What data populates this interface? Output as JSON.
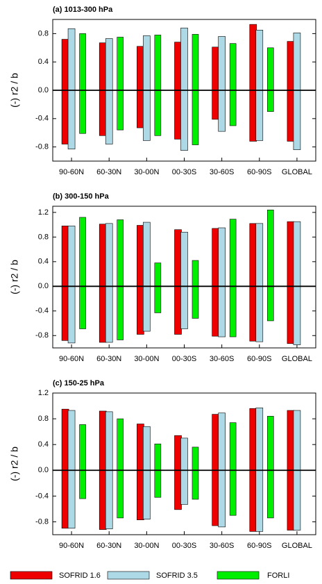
{
  "chart_data": [
    {
      "type": "bar",
      "title": "(a) 1013-300 hPa",
      "ylabel": "(-) r2 / b",
      "categories": [
        "90-60N",
        "60-30N",
        "30-00N",
        "00-30S",
        "30-60S",
        "60-90S",
        "GLOBAL"
      ],
      "ylim": [
        -1.0,
        1.0
      ],
      "yticks": [
        -0.8,
        -0.4,
        {
          "value": 0,
          "label": "0.0"
        },
        0.4,
        0.8
      ],
      "series": [
        {
          "name": "SOFRID 1.6",
          "color": "#ee0000",
          "upper": [
            0.72,
            0.67,
            0.62,
            0.68,
            0.61,
            0.93,
            0.69
          ],
          "lower": [
            -0.76,
            -0.64,
            -0.53,
            -0.69,
            -0.41,
            -0.72,
            -0.72
          ]
        },
        {
          "name": "SOFRID 3.5",
          "color": "#add8e6",
          "upper": [
            0.87,
            0.73,
            0.77,
            0.88,
            0.76,
            0.85,
            0.81
          ],
          "lower": [
            -0.83,
            -0.76,
            -0.71,
            -0.85,
            -0.58,
            -0.71,
            -0.84
          ]
        },
        {
          "name": "FORLI",
          "color": "#00ee00",
          "upper": [
            0.8,
            0.75,
            0.78,
            0.79,
            0.66,
            0.6,
            null
          ],
          "lower": [
            -0.61,
            -0.56,
            -0.64,
            -0.77,
            -0.5,
            -0.3,
            null
          ]
        }
      ]
    },
    {
      "type": "bar",
      "title": "(b) 300-150 hPa",
      "ylabel": "(-) r2 / b",
      "categories": [
        "90-60N",
        "60-30N",
        "30-00N",
        "00-30S",
        "30-60S",
        "60-90S",
        "GLOBAL"
      ],
      "ylim": [
        -1.0,
        1.3
      ],
      "yticks": [
        -0.8,
        -0.4,
        {
          "value": 0,
          "label": "0.0"
        },
        0.4,
        0.8,
        1.2
      ],
      "series": [
        {
          "upper": [
            0.98,
            1.01,
            0.99,
            0.92,
            0.94,
            1.02,
            1.05
          ],
          "lower": [
            -0.88,
            -0.91,
            -0.78,
            -0.78,
            -0.81,
            -0.89,
            -0.93
          ]
        },
        {
          "upper": [
            0.98,
            1.02,
            1.04,
            0.88,
            0.95,
            1.02,
            1.05
          ],
          "lower": [
            -0.92,
            -0.91,
            -0.73,
            -0.69,
            -0.82,
            -0.9,
            -0.95
          ]
        },
        {
          "upper": [
            1.12,
            1.08,
            0.38,
            0.42,
            1.09,
            1.24,
            null
          ],
          "lower": [
            -0.69,
            -0.87,
            -0.43,
            -0.52,
            -0.82,
            -0.56,
            null
          ]
        }
      ]
    },
    {
      "type": "bar",
      "title": "(c) 150-25 hPa",
      "ylabel": "(-) r2 / b",
      "categories": [
        "90-60N",
        "60-30N",
        "30-00N",
        "00-30S",
        "30-60S",
        "60-90S",
        "GLOBAL"
      ],
      "ylim": [
        -1.0,
        1.2
      ],
      "yticks": [
        -0.8,
        -0.4,
        {
          "value": 0,
          "label": "0.0"
        },
        0.4,
        0.8,
        1.2
      ],
      "series": [
        {
          "upper": [
            0.95,
            0.92,
            0.72,
            0.54,
            0.87,
            0.96,
            0.93
          ],
          "lower": [
            -0.9,
            -0.92,
            -0.77,
            -0.61,
            -0.86,
            -0.95,
            -0.93
          ]
        },
        {
          "upper": [
            0.93,
            0.91,
            0.68,
            0.5,
            0.89,
            0.97,
            0.93
          ],
          "lower": [
            -0.9,
            -0.91,
            -0.76,
            -0.53,
            -0.88,
            -0.95,
            -0.93
          ]
        },
        {
          "upper": [
            0.71,
            0.8,
            0.41,
            0.36,
            0.74,
            0.84,
            null
          ],
          "lower": [
            -0.44,
            -0.74,
            -0.42,
            -0.45,
            -0.7,
            -0.74,
            null
          ]
        }
      ]
    }
  ]
}
